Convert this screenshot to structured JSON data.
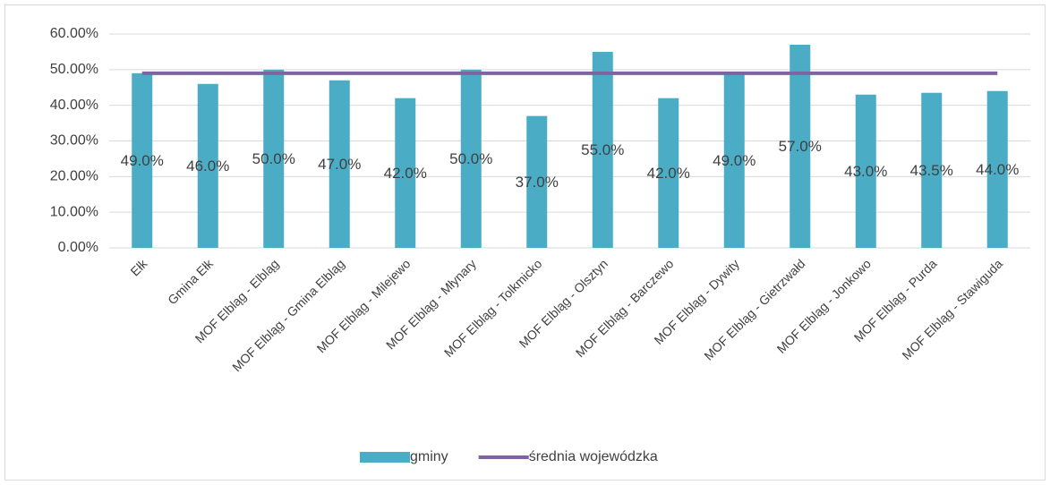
{
  "chart_data": {
    "type": "bar",
    "categories": [
      "Ełk",
      "Gmina Ełk",
      "MOF Elbląg - Elbląg",
      "MOF Elbląg - Gmina Elbląg",
      "MOF Elbląg - Milejewo",
      "MOF Elbląg - Młynary",
      "MOF Elbląg - Tolkmicko",
      "MOF Elbląg - Olsztyn",
      "MOF Elbląg - Barczewo",
      "MOF Elbląg - Dywity",
      "MOF Elbląg - Gietrzwałd",
      "MOF Elbląg - Jonkowo",
      "MOF Elbląg - Purda",
      "MOF Elbląg - Stawiguda"
    ],
    "series": [
      {
        "name": "gminy",
        "type": "bar",
        "color": "#4bacc6",
        "values": [
          49,
          46,
          50,
          47,
          42,
          50,
          37,
          55,
          42,
          49,
          57,
          43,
          43.5,
          44
        ],
        "value_labels": [
          "49.0%",
          "46.0%",
          "50.0%",
          "47.0%",
          "42.0%",
          "50.0%",
          "37.0%",
          "55.0%",
          "42.0%",
          "49.0%",
          "57.0%",
          "43.0%",
          "43.5%",
          "44.0%"
        ]
      },
      {
        "name": "średnia wojewódzka",
        "type": "line",
        "color": "#8064a2",
        "values": [
          49,
          49,
          49,
          49,
          49,
          49,
          49,
          49,
          49,
          49,
          49,
          49,
          49,
          49
        ]
      }
    ],
    "ylim": [
      0,
      60
    ],
    "yticks": [
      {
        "value": 0,
        "label": "0.00%"
      },
      {
        "value": 10,
        "label": "10.00%"
      },
      {
        "value": 20,
        "label": "20.00%"
      },
      {
        "value": 30,
        "label": "30.00%"
      },
      {
        "value": 40,
        "label": "40.00%"
      },
      {
        "value": 50,
        "label": "50.00%"
      },
      {
        "value": 60,
        "label": "60.00%"
      }
    ],
    "grid": true,
    "legend": "bottom"
  }
}
